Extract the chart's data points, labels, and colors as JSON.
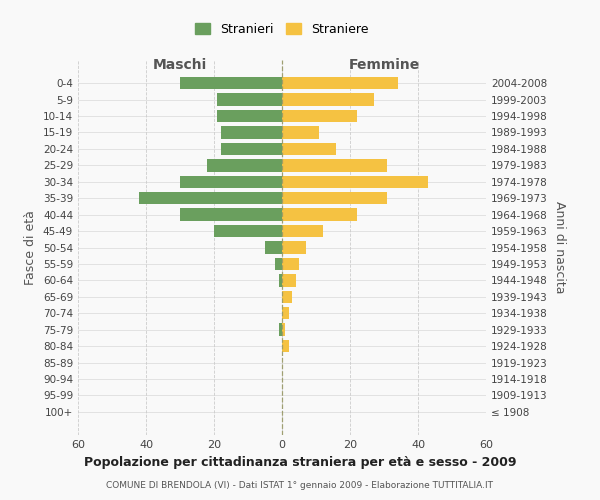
{
  "age_groups": [
    "100+",
    "95-99",
    "90-94",
    "85-89",
    "80-84",
    "75-79",
    "70-74",
    "65-69",
    "60-64",
    "55-59",
    "50-54",
    "45-49",
    "40-44",
    "35-39",
    "30-34",
    "25-29",
    "20-24",
    "15-19",
    "10-14",
    "5-9",
    "0-4"
  ],
  "birth_years": [
    "≤ 1908",
    "1909-1913",
    "1914-1918",
    "1919-1923",
    "1924-1928",
    "1929-1933",
    "1934-1938",
    "1939-1943",
    "1944-1948",
    "1949-1953",
    "1954-1958",
    "1959-1963",
    "1964-1968",
    "1969-1973",
    "1974-1978",
    "1979-1983",
    "1984-1988",
    "1989-1993",
    "1994-1998",
    "1999-2003",
    "2004-2008"
  ],
  "males": [
    0,
    0,
    0,
    0,
    0,
    1,
    0,
    0,
    1,
    2,
    5,
    20,
    30,
    42,
    30,
    22,
    18,
    18,
    19,
    19,
    30
  ],
  "females": [
    0,
    0,
    0,
    0,
    2,
    1,
    2,
    3,
    4,
    5,
    7,
    12,
    22,
    31,
    43,
    31,
    16,
    11,
    22,
    27,
    34
  ],
  "male_color": "#6a9f5e",
  "female_color": "#f5c242",
  "background_color": "#f9f9f9",
  "grid_color": "#cccccc",
  "title": "Popolazione per cittadinanza straniera per età e sesso - 2009",
  "subtitle": "COMUNE DI BRENDOLA (VI) - Dati ISTAT 1° gennaio 2009 - Elaborazione TUTTITALIA.IT",
  "xlabel_left": "Maschi",
  "xlabel_right": "Femmine",
  "ylabel_left": "Fasce di età",
  "ylabel_right": "Anni di nascita",
  "xlim": 60,
  "legend_males": "Stranieri",
  "legend_females": "Straniere"
}
